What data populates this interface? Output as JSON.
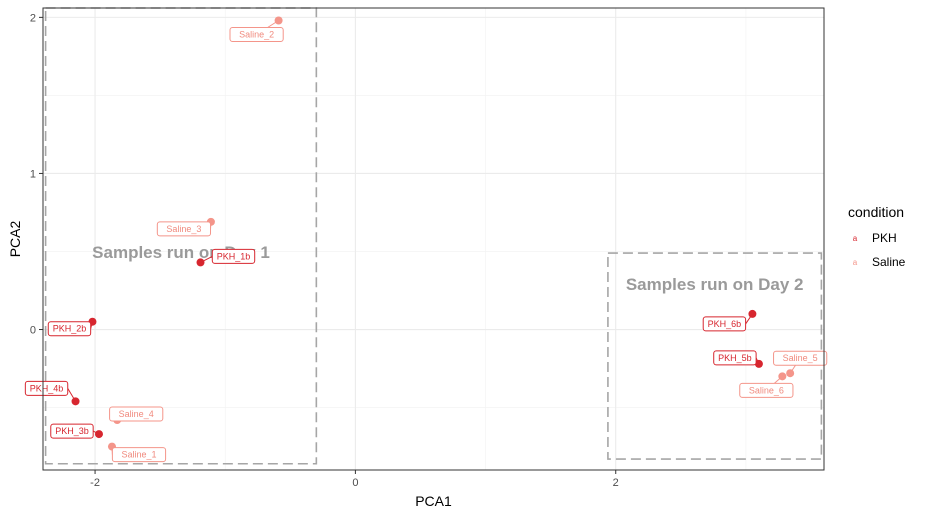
{
  "chart_data": {
    "type": "scatter",
    "xlabel": "PCA1",
    "ylabel": "PCA2",
    "xlim": [
      -2.4,
      3.6
    ],
    "ylim": [
      -0.9,
      2.06
    ],
    "x_ticks": [
      -2,
      0,
      2
    ],
    "x_tick_labels": [
      "-2",
      "0",
      "2"
    ],
    "y_ticks": [
      0,
      1,
      2
    ],
    "y_tick_labels": [
      "0",
      "1",
      "2"
    ],
    "grid": true,
    "legend": {
      "title": "condition",
      "position": "right",
      "entries": [
        {
          "label": "PKH",
          "color": "#d7262f"
        },
        {
          "label": "Saline",
          "color": "#f4958a"
        }
      ]
    },
    "points": [
      {
        "label": "Saline_2",
        "condition": "Saline",
        "x": -0.59,
        "y": 1.98
      },
      {
        "label": "Saline_3",
        "condition": "Saline",
        "x": -1.11,
        "y": 0.69
      },
      {
        "label": "PKH_1b",
        "condition": "PKH",
        "x": -1.19,
        "y": 0.43
      },
      {
        "label": "PKH_2b",
        "condition": "PKH",
        "x": -2.02,
        "y": 0.05
      },
      {
        "label": "PKH_4b",
        "condition": "PKH",
        "x": -2.15,
        "y": -0.46
      },
      {
        "label": "Saline_4",
        "condition": "Saline",
        "x": -1.83,
        "y": -0.58
      },
      {
        "label": "PKH_3b",
        "condition": "PKH",
        "x": -1.97,
        "y": -0.67
      },
      {
        "label": "Saline_1",
        "condition": "Saline",
        "x": -1.87,
        "y": -0.75
      },
      {
        "label": "PKH_6b",
        "condition": "PKH",
        "x": 3.05,
        "y": 0.1
      },
      {
        "label": "PKH_5b",
        "condition": "PKH",
        "x": 3.1,
        "y": -0.22
      },
      {
        "label": "Saline_5",
        "condition": "Saline",
        "x": 3.34,
        "y": -0.28
      },
      {
        "label": "Saline_6",
        "condition": "Saline",
        "x": 3.28,
        "y": -0.3
      }
    ],
    "annotations": [
      {
        "text": "Samples run on Day 1",
        "x_range": [
          -2.38,
          -0.3
        ],
        "y_range": [
          -0.86,
          2.06
        ]
      },
      {
        "text": "Samples run on Day 2",
        "x_range": [
          1.94,
          3.58
        ],
        "y_range": [
          -0.83,
          0.49
        ]
      }
    ]
  }
}
